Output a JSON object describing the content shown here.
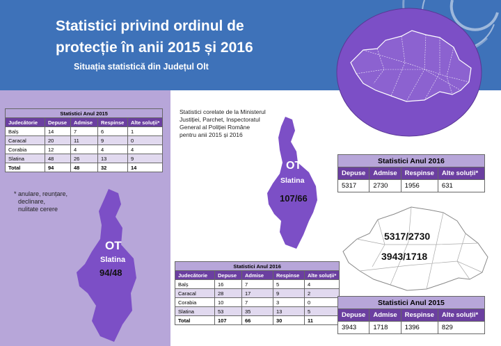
{
  "header": {
    "title_line1": "Statistici privind ordinul de",
    "title_line2": "protecție în anii 2015 și 2016",
    "subtitle": "Situația statistică din Județul Olt"
  },
  "table2015_left": {
    "caption": "Statistici Anul 2015",
    "columns": [
      "Judecătorie",
      "Depuse",
      "Admise",
      "Respinse",
      "Alte soluții*"
    ],
    "rows": [
      [
        "Balș",
        "14",
        "7",
        "6",
        "1"
      ],
      [
        "Caracal",
        "20",
        "11",
        "9",
        "0"
      ],
      [
        "Corabia",
        "12",
        "4",
        "4",
        "4"
      ],
      [
        "Slatina",
        "48",
        "26",
        "13",
        "9"
      ],
      [
        "Total",
        "94",
        "48",
        "32",
        "14"
      ]
    ]
  },
  "footnote": {
    "line1": "* anulare, reunțare,",
    "line2": "declinare,",
    "line3": "nulitate cerere"
  },
  "county_left": {
    "code": "OT",
    "city": "Slatina",
    "ratio": "94/48"
  },
  "correlated_note": {
    "line1": "Statistici corelate de la Ministerul",
    "line2": "Justiției, Parchet, Inspectoratul",
    "line3": "General al Poliției Române",
    "line4": "pentru anii 2015 și 2016"
  },
  "county_center": {
    "code": "OT",
    "city": "Slatina",
    "ratio": "107/66"
  },
  "table2016_center": {
    "caption": "Statistici Anul 2016",
    "columns": [
      "Judecătorie",
      "Depuse",
      "Admise",
      "Respinse",
      "Alte soluții*"
    ],
    "rows": [
      [
        "Balș",
        "16",
        "7",
        "5",
        "4"
      ],
      [
        "Caracal",
        "28",
        "17",
        "9",
        "2"
      ],
      [
        "Corabia",
        "10",
        "7",
        "3",
        "0"
      ],
      [
        "Slatina",
        "53",
        "35",
        "13",
        "5"
      ],
      [
        "Total",
        "107",
        "66",
        "30",
        "11"
      ]
    ]
  },
  "national2016": {
    "caption": "Statistici Anul 2016",
    "columns": [
      "Depuse",
      "Admise",
      "Respinse",
      "Alte soluții*"
    ],
    "values": [
      "5317",
      "2730",
      "1956",
      "631"
    ]
  },
  "national2015": {
    "caption": "Statistici Anul 2015",
    "columns": [
      "Depuse",
      "Admise",
      "Respinse",
      "Alte soluții*"
    ],
    "values": [
      "3943",
      "1718",
      "1396",
      "829"
    ]
  },
  "romania_map": {
    "ratio_2016": "5317/2730",
    "ratio_2015": "3943/1718"
  },
  "colors": {
    "header_blue": "#3e72b9",
    "purple": "#7c4fc6",
    "lavender": "#b7a6d9",
    "dark_purple": "#6b3fa0"
  }
}
